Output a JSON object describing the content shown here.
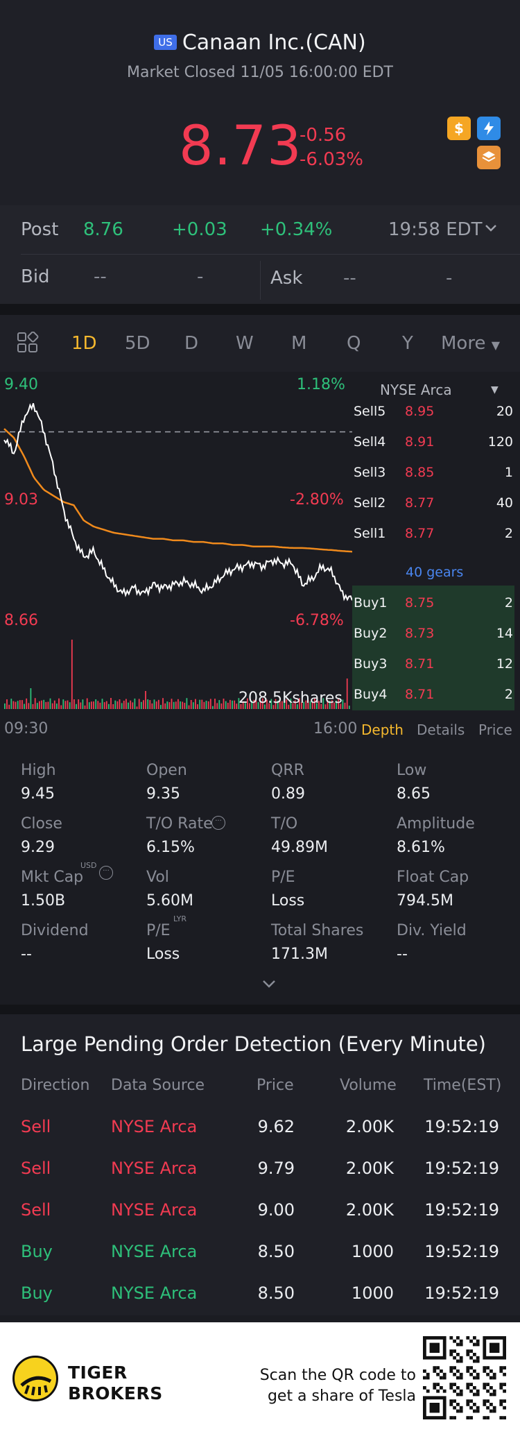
{
  "header": {
    "market_badge": "US",
    "title": "Canaan Inc.(CAN)",
    "status": "Market Closed 11/05 16:00:00 EDT",
    "price": "8.73",
    "change": "-0.56",
    "change_pct": "-6.03%",
    "icons": [
      "dollar-icon",
      "flash-icon",
      "layers-icon"
    ]
  },
  "post": {
    "label": "Post",
    "price": "8.76",
    "change": "+0.03",
    "change_pct": "+0.34%",
    "time": "19:58 EDT"
  },
  "bidask": {
    "bid_label": "Bid",
    "bid_price": "--",
    "bid_qty": "-",
    "ask_label": "Ask",
    "ask_price": "--",
    "ask_qty": "-"
  },
  "tabs": [
    "1D",
    "5D",
    "D",
    "W",
    "M",
    "Q",
    "Y"
  ],
  "tabs_active": "1D",
  "more_label": "More",
  "chart": {
    "y_top": "9.40",
    "y_mid": "9.03",
    "y_bot": "8.66",
    "pct_top": "1.18%",
    "pct_mid": "-2.80%",
    "pct_bot": "-6.78%",
    "volume_label": "208.5Kshares",
    "x_start": "09:30",
    "x_end": "16:00"
  },
  "chart_data": {
    "type": "line",
    "title": "",
    "xlabel": "",
    "ylabel": "",
    "x_range": [
      "09:30",
      "16:00"
    ],
    "ylim": [
      8.66,
      9.4
    ],
    "reference_line": 9.29,
    "series": [
      {
        "values": [
          9.27,
          9.22,
          9.34,
          9.38,
          9.29,
          9.17,
          9.03,
          8.94,
          8.88,
          8.9,
          8.84,
          8.79,
          8.76,
          8.78,
          8.76,
          8.79,
          8.78,
          8.79,
          8.8,
          8.79,
          8.77,
          8.79,
          8.82,
          8.84,
          8.85,
          8.86,
          8.85,
          8.87,
          8.86,
          8.86,
          8.79,
          8.81,
          8.85,
          8.83,
          8.76,
          8.74
        ]
      },
      {
        "values": [
          9.3,
          9.27,
          9.21,
          9.14,
          9.1,
          9.08,
          9.06,
          9.05,
          9.0,
          8.98,
          8.97,
          8.96,
          8.955,
          8.95,
          8.945,
          8.94,
          8.94,
          8.935,
          8.935,
          8.93,
          8.93,
          8.925,
          8.925,
          8.92,
          8.92,
          8.915,
          8.915,
          8.915,
          8.912,
          8.91,
          8.91,
          8.908,
          8.905,
          8.903,
          8.9,
          8.898
        ]
      }
    ]
  },
  "orderbook": {
    "exchange": "NYSE Arca",
    "sells": [
      {
        "label": "Sell5",
        "price": "8.95",
        "qty": "20"
      },
      {
        "label": "Sell4",
        "price": "8.91",
        "qty": "120"
      },
      {
        "label": "Sell3",
        "price": "8.85",
        "qty": "1"
      },
      {
        "label": "Sell2",
        "price": "8.77",
        "qty": "40"
      },
      {
        "label": "Sell1",
        "price": "8.77",
        "qty": "2"
      }
    ],
    "gears": "40 gears",
    "buys": [
      {
        "label": "Buy1",
        "price": "8.75",
        "qty": "2"
      },
      {
        "label": "Buy2",
        "price": "8.73",
        "qty": "14"
      },
      {
        "label": "Buy3",
        "price": "8.71",
        "qty": "12"
      },
      {
        "label": "Buy4",
        "price": "8.71",
        "qty": "2"
      }
    ],
    "tabs": [
      "Depth",
      "Details",
      "Price"
    ]
  },
  "stats": [
    {
      "label": "High",
      "value": "9.45"
    },
    {
      "label": "Open",
      "value": "9.35"
    },
    {
      "label": "QRR",
      "value": "0.89"
    },
    {
      "label": "Low",
      "value": "8.65"
    },
    {
      "label": "Close",
      "value": "9.29"
    },
    {
      "label": "T/O Rate",
      "value": "6.15%"
    },
    {
      "label": "T/O",
      "value": "49.89M"
    },
    {
      "label": "Amplitude",
      "value": "8.61%"
    },
    {
      "label": "Mkt Cap",
      "value": "1.50B"
    },
    {
      "label": "Vol",
      "value": "5.60M"
    },
    {
      "label": "P/E",
      "value": "Loss"
    },
    {
      "label": "Float Cap",
      "value": "794.5M"
    },
    {
      "label": "Dividend",
      "value": "--"
    },
    {
      "label": "P/E",
      "value": "Loss"
    },
    {
      "label": "Total Shares",
      "value": "171.3M"
    },
    {
      "label": "Div. Yield",
      "value": "--"
    }
  ],
  "stats_sup": {
    "usd": "USD",
    "lyr": "LYR"
  },
  "orders": {
    "title": "Large Pending Order Detection (Every Minute)",
    "headers": [
      "Direction",
      "Data Source",
      "Price",
      "Volume",
      "Time(EST)"
    ],
    "rows": [
      {
        "direction": "Sell",
        "source": "NYSE Arca",
        "price": "9.62",
        "volume": "2.00K",
        "time": "19:52:19"
      },
      {
        "direction": "Sell",
        "source": "NYSE Arca",
        "price": "9.79",
        "volume": "2.00K",
        "time": "19:52:19"
      },
      {
        "direction": "Sell",
        "source": "NYSE Arca",
        "price": "9.00",
        "volume": "2.00K",
        "time": "19:52:19"
      },
      {
        "direction": "Buy",
        "source": "NYSE Arca",
        "price": "8.50",
        "volume": "1000",
        "time": "19:52:19"
      },
      {
        "direction": "Buy",
        "source": "NYSE Arca",
        "price": "8.50",
        "volume": "1000",
        "time": "19:52:19"
      }
    ]
  },
  "footer": {
    "brand_line1": "TIGER",
    "brand_line2": "BROKERS",
    "scan_line1": "Scan the QR code to",
    "scan_line2": "get a share of Tesla"
  },
  "colors": {
    "up": "#2ec07a",
    "down": "#f23b52",
    "accent": "#f5b82e",
    "avg_line": "#f08a1c"
  }
}
